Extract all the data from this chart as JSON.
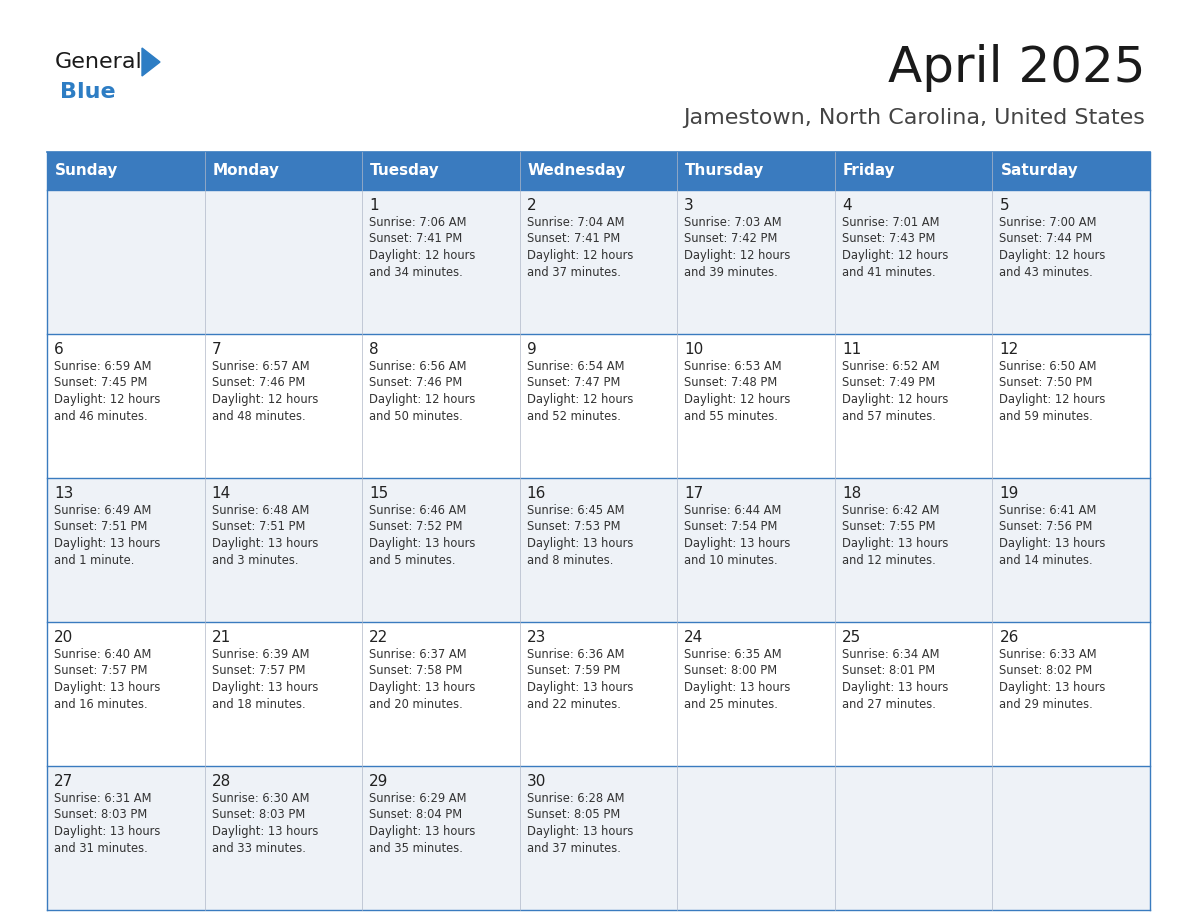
{
  "title": "April 2025",
  "subtitle": "Jamestown, North Carolina, United States",
  "header_bg": "#3a7bbf",
  "header_text": "#ffffff",
  "day_names": [
    "Sunday",
    "Monday",
    "Tuesday",
    "Wednesday",
    "Thursday",
    "Friday",
    "Saturday"
  ],
  "alt_row_bg": "#eef2f7",
  "normal_row_bg": "#ffffff",
  "border_color": "#3a7bbf",
  "day_num_color": "#222222",
  "text_color": "#333333",
  "calendar_data": [
    [
      {
        "day": "",
        "sunrise": "",
        "sunset": "",
        "daylight": ""
      },
      {
        "day": "",
        "sunrise": "",
        "sunset": "",
        "daylight": ""
      },
      {
        "day": "1",
        "sunrise": "7:06 AM",
        "sunset": "7:41 PM",
        "daylight": "12 hours\nand 34 minutes."
      },
      {
        "day": "2",
        "sunrise": "7:04 AM",
        "sunset": "7:41 PM",
        "daylight": "12 hours\nand 37 minutes."
      },
      {
        "day": "3",
        "sunrise": "7:03 AM",
        "sunset": "7:42 PM",
        "daylight": "12 hours\nand 39 minutes."
      },
      {
        "day": "4",
        "sunrise": "7:01 AM",
        "sunset": "7:43 PM",
        "daylight": "12 hours\nand 41 minutes."
      },
      {
        "day": "5",
        "sunrise": "7:00 AM",
        "sunset": "7:44 PM",
        "daylight": "12 hours\nand 43 minutes."
      }
    ],
    [
      {
        "day": "6",
        "sunrise": "6:59 AM",
        "sunset": "7:45 PM",
        "daylight": "12 hours\nand 46 minutes."
      },
      {
        "day": "7",
        "sunrise": "6:57 AM",
        "sunset": "7:46 PM",
        "daylight": "12 hours\nand 48 minutes."
      },
      {
        "day": "8",
        "sunrise": "6:56 AM",
        "sunset": "7:46 PM",
        "daylight": "12 hours\nand 50 minutes."
      },
      {
        "day": "9",
        "sunrise": "6:54 AM",
        "sunset": "7:47 PM",
        "daylight": "12 hours\nand 52 minutes."
      },
      {
        "day": "10",
        "sunrise": "6:53 AM",
        "sunset": "7:48 PM",
        "daylight": "12 hours\nand 55 minutes."
      },
      {
        "day": "11",
        "sunrise": "6:52 AM",
        "sunset": "7:49 PM",
        "daylight": "12 hours\nand 57 minutes."
      },
      {
        "day": "12",
        "sunrise": "6:50 AM",
        "sunset": "7:50 PM",
        "daylight": "12 hours\nand 59 minutes."
      }
    ],
    [
      {
        "day": "13",
        "sunrise": "6:49 AM",
        "sunset": "7:51 PM",
        "daylight": "13 hours\nand 1 minute."
      },
      {
        "day": "14",
        "sunrise": "6:48 AM",
        "sunset": "7:51 PM",
        "daylight": "13 hours\nand 3 minutes."
      },
      {
        "day": "15",
        "sunrise": "6:46 AM",
        "sunset": "7:52 PM",
        "daylight": "13 hours\nand 5 minutes."
      },
      {
        "day": "16",
        "sunrise": "6:45 AM",
        "sunset": "7:53 PM",
        "daylight": "13 hours\nand 8 minutes."
      },
      {
        "day": "17",
        "sunrise": "6:44 AM",
        "sunset": "7:54 PM",
        "daylight": "13 hours\nand 10 minutes."
      },
      {
        "day": "18",
        "sunrise": "6:42 AM",
        "sunset": "7:55 PM",
        "daylight": "13 hours\nand 12 minutes."
      },
      {
        "day": "19",
        "sunrise": "6:41 AM",
        "sunset": "7:56 PM",
        "daylight": "13 hours\nand 14 minutes."
      }
    ],
    [
      {
        "day": "20",
        "sunrise": "6:40 AM",
        "sunset": "7:57 PM",
        "daylight": "13 hours\nand 16 minutes."
      },
      {
        "day": "21",
        "sunrise": "6:39 AM",
        "sunset": "7:57 PM",
        "daylight": "13 hours\nand 18 minutes."
      },
      {
        "day": "22",
        "sunrise": "6:37 AM",
        "sunset": "7:58 PM",
        "daylight": "13 hours\nand 20 minutes."
      },
      {
        "day": "23",
        "sunrise": "6:36 AM",
        "sunset": "7:59 PM",
        "daylight": "13 hours\nand 22 minutes."
      },
      {
        "day": "24",
        "sunrise": "6:35 AM",
        "sunset": "8:00 PM",
        "daylight": "13 hours\nand 25 minutes."
      },
      {
        "day": "25",
        "sunrise": "6:34 AM",
        "sunset": "8:01 PM",
        "daylight": "13 hours\nand 27 minutes."
      },
      {
        "day": "26",
        "sunrise": "6:33 AM",
        "sunset": "8:02 PM",
        "daylight": "13 hours\nand 29 minutes."
      }
    ],
    [
      {
        "day": "27",
        "sunrise": "6:31 AM",
        "sunset": "8:03 PM",
        "daylight": "13 hours\nand 31 minutes."
      },
      {
        "day": "28",
        "sunrise": "6:30 AM",
        "sunset": "8:03 PM",
        "daylight": "13 hours\nand 33 minutes."
      },
      {
        "day": "29",
        "sunrise": "6:29 AM",
        "sunset": "8:04 PM",
        "daylight": "13 hours\nand 35 minutes."
      },
      {
        "day": "30",
        "sunrise": "6:28 AM",
        "sunset": "8:05 PM",
        "daylight": "13 hours\nand 37 minutes."
      },
      {
        "day": "",
        "sunrise": "",
        "sunset": "",
        "daylight": ""
      },
      {
        "day": "",
        "sunrise": "",
        "sunset": "",
        "daylight": ""
      },
      {
        "day": "",
        "sunrise": "",
        "sunset": "",
        "daylight": ""
      }
    ]
  ],
  "logo_color_general": "#1a1a1a",
  "logo_color_blue": "#2d7dc4",
  "logo_triangle_color": "#2d7dc4",
  "title_color": "#1a1a1a",
  "subtitle_color": "#444444"
}
